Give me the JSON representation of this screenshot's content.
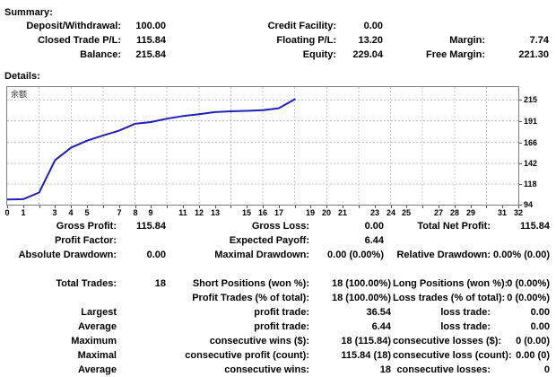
{
  "colors": {
    "text": "#000000",
    "line": "#2020b8",
    "grid": "#c9c9c9",
    "plot_border": "#7e7e7e"
  },
  "summary": {
    "heading": "Summary:",
    "rows": [
      {
        "cells": [
          {
            "label": "Deposit/Withdrawal:",
            "value": "100.00"
          },
          {
            "label": "Credit Facility:",
            "value": "0.00"
          },
          null
        ]
      },
      {
        "cells": [
          {
            "label": "Closed Trade P/L:",
            "value": "115.84"
          },
          {
            "label": "Floating P/L:",
            "value": "13.20"
          },
          {
            "label": "Margin:",
            "value": "7.74"
          }
        ]
      },
      {
        "cells": [
          {
            "label": "Balance:",
            "value": "215.84"
          },
          {
            "label": "Equity:",
            "value": "229.04"
          },
          {
            "label": "Free Margin:",
            "value": "221.30"
          }
        ]
      }
    ]
  },
  "details": {
    "heading": "Details:",
    "stat_rows_top": [
      {
        "cells": [
          {
            "label": "Gross Profit:",
            "value": "115.84"
          },
          {
            "label": "Gross Loss:",
            "value": "0.00"
          },
          {
            "label": "Total Net Profit:",
            "value": "115.84"
          }
        ]
      },
      {
        "cells": [
          {
            "label": "Profit Factor:",
            "value": ""
          },
          {
            "label": "Expected Payoff:",
            "value": "6.44"
          },
          null
        ]
      },
      {
        "cells": [
          {
            "label": "Absolute Drawdown:",
            "value": "0.00"
          },
          {
            "label": "Maximal Drawdown:",
            "value": "0.00 (0.00%)"
          },
          {
            "label": "Relative Drawdown:",
            "value": "0.00% (0.00)"
          }
        ]
      }
    ],
    "stat_rows_bottom": [
      {
        "cells": [
          {
            "label": "Total Trades:",
            "value": "18"
          },
          {
            "label": "Short Positions (won %):",
            "value": "18 (100.00%)"
          },
          {
            "label": "Long Positions (won %):",
            "value": "0 (0.00%)"
          }
        ]
      },
      {
        "cells": [
          null,
          {
            "label": "Profit Trades (% of total):",
            "value": "18 (100.00%)"
          },
          {
            "label": "Loss trades (% of total):",
            "value": "0 (0.00%)"
          }
        ]
      },
      {
        "cells": [
          {
            "label": "Largest",
            "value": ""
          },
          {
            "label": "profit trade:",
            "value": "36.54"
          },
          {
            "label": "loss trade:",
            "value": "0.00"
          }
        ]
      },
      {
        "cells": [
          {
            "label": "Average",
            "value": ""
          },
          {
            "label": "profit trade:",
            "value": "6.44"
          },
          {
            "label": "loss trade:",
            "value": "0.00"
          }
        ]
      },
      {
        "cells": [
          {
            "label": "Maximum",
            "value": ""
          },
          {
            "label": "consecutive wins ($):",
            "value": "18 (115.84)"
          },
          {
            "label": "consecutive losses ($):",
            "value": "0 (0.00)"
          }
        ]
      },
      {
        "cells": [
          {
            "label": "Maximal",
            "value": ""
          },
          {
            "label": "consecutive profit (count):",
            "value": "115.84 (18)"
          },
          {
            "label": "consecutive loss (count):",
            "value": "0.00 (0)"
          }
        ]
      },
      {
        "cells": [
          {
            "label": "Average",
            "value": ""
          },
          {
            "label": "consecutive wins:",
            "value": "18"
          },
          {
            "label": "consecutive losses:",
            "value": "0"
          }
        ]
      }
    ]
  },
  "chart_data": {
    "type": "line",
    "title": "余额",
    "series_name": "Balance",
    "x": [
      0,
      1,
      2,
      3,
      4,
      5,
      6,
      7,
      8,
      9,
      10,
      11,
      12,
      13,
      14,
      15,
      16,
      17,
      18
    ],
    "values": [
      100.0,
      100.3,
      108.0,
      145.5,
      160.0,
      168.0,
      174.0,
      179.5,
      187.5,
      189.5,
      193.5,
      196.5,
      198.5,
      201.0,
      202.0,
      202.5,
      203.2,
      205.54,
      215.84
    ],
    "xlim": [
      0,
      32
    ],
    "ylim": [
      94,
      230
    ],
    "x_tick_labels": [
      0,
      1,
      3,
      4,
      5,
      7,
      8,
      9,
      11,
      12,
      13,
      15,
      16,
      17,
      19,
      20,
      21,
      23,
      24,
      25,
      27,
      28,
      29,
      31,
      32
    ],
    "x_grid_step": 2,
    "y_gridlines": [
      118,
      142,
      166,
      191,
      215
    ],
    "y_tick_labels": [
      94,
      118,
      142,
      166,
      191,
      215
    ],
    "grid": true,
    "legend_position": "top-left-inside"
  }
}
